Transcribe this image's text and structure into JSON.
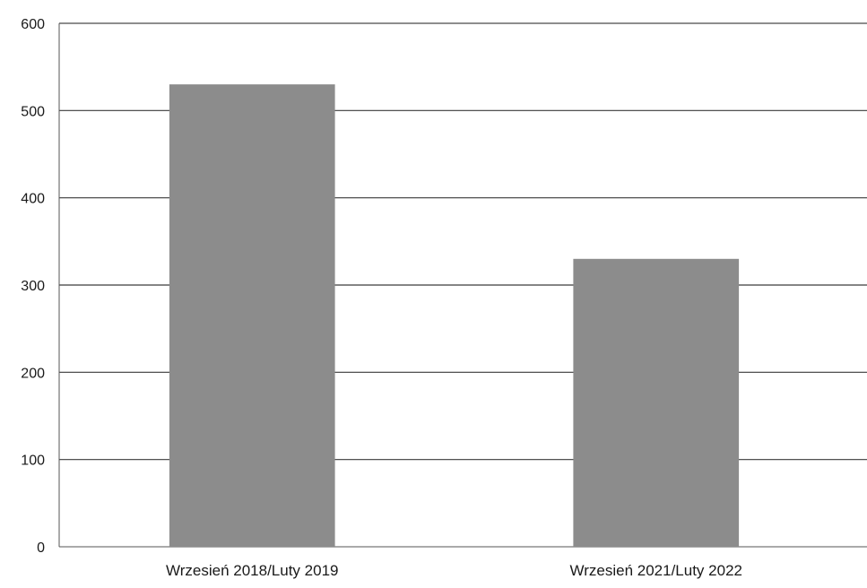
{
  "chart_data": {
    "type": "bar",
    "title": "",
    "xlabel": "",
    "ylabel": "",
    "categories": [
      "Wrzesień 2018/Luty 2019",
      "Wrzesień 2021/Luty 2022"
    ],
    "series": [
      {
        "values": [
          530,
          330
        ]
      }
    ],
    "ylim": [
      0,
      600
    ],
    "yticks": [
      "0",
      "100",
      "200",
      "300",
      "400",
      "500",
      "600"
    ],
    "grid": true,
    "legend": "none",
    "colors": {
      "bar": "#8c8c8c",
      "grid": "#3a3a3a",
      "axis": "#555555"
    }
  }
}
